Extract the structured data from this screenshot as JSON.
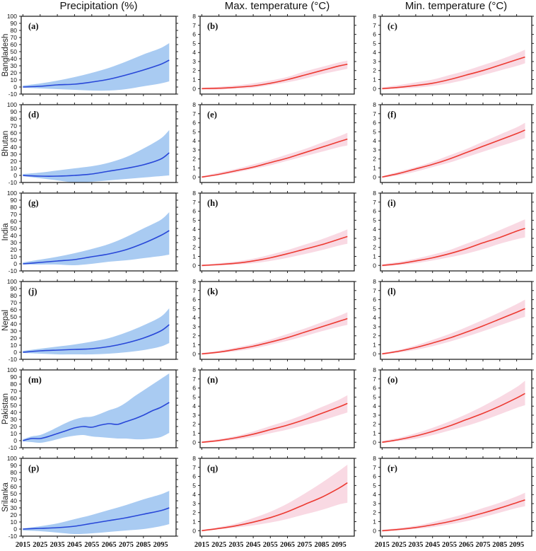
{
  "figure": {
    "column_titles": [
      "Precipitation (%)",
      "Max. temperature (°C)",
      "Min. temperature (°C)"
    ],
    "row_labels": [
      "Bangladesh",
      "Bhutan",
      "India",
      "Nepal",
      "Pakistan",
      "Srilanka"
    ],
    "x_axis": {
      "xlim": [
        2014,
        2104
      ],
      "ticks": [
        2015,
        2025,
        2035,
        2045,
        2055,
        2065,
        2075,
        2085,
        2095
      ]
    },
    "colors": {
      "precip_line": "#2847d8",
      "precip_band": "#a9cbf2",
      "temp_line": "#ec3a31",
      "temp_band": "#f9d9e3",
      "frame": "#222222",
      "text": "#111111"
    }
  },
  "chart_data": [
    {
      "id": "a",
      "label": "(a)",
      "type": "line",
      "variant": "precip",
      "row": "Bangladesh",
      "column": "Precipitation (%)",
      "ylim": [
        -10,
        100
      ],
      "yticks": [
        -10,
        0,
        10,
        20,
        30,
        40,
        50,
        60,
        70,
        80,
        90,
        100
      ],
      "x": [
        2015,
        2025,
        2035,
        2045,
        2055,
        2065,
        2075,
        2085,
        2095,
        2100
      ],
      "line": [
        0,
        1,
        3,
        4,
        7,
        11,
        17,
        24,
        32,
        38
      ],
      "lower": [
        -1,
        -2,
        -3,
        -4,
        -5,
        -5,
        -3,
        1,
        5,
        8
      ],
      "upper": [
        2,
        5,
        9,
        14,
        20,
        27,
        36,
        46,
        55,
        62
      ]
    },
    {
      "id": "b",
      "label": "(b)",
      "type": "line",
      "variant": "temp",
      "row": "Bangladesh",
      "column": "Max. temperature (°C)",
      "ylim": [
        -0.6,
        8
      ],
      "yticks": [
        0,
        1,
        2,
        3,
        4,
        5,
        6,
        7,
        8
      ],
      "x": [
        2015,
        2025,
        2035,
        2045,
        2055,
        2065,
        2075,
        2085,
        2095,
        2100
      ],
      "line": [
        0,
        0.05,
        0.15,
        0.3,
        0.6,
        1.0,
        1.5,
        2.0,
        2.5,
        2.7
      ],
      "lower": [
        -0.1,
        -0.1,
        0,
        0.1,
        0.4,
        0.7,
        1.1,
        1.6,
        2.0,
        2.2
      ],
      "upper": [
        0.1,
        0.2,
        0.35,
        0.6,
        0.9,
        1.3,
        1.9,
        2.4,
        2.9,
        3.1
      ]
    },
    {
      "id": "c",
      "label": "(c)",
      "type": "line",
      "variant": "temp",
      "row": "Bangladesh",
      "column": "Min. temperature (°C)",
      "ylim": [
        -0.6,
        8
      ],
      "yticks": [
        0,
        1,
        2,
        3,
        4,
        5,
        6,
        7,
        8
      ],
      "x": [
        2015,
        2025,
        2035,
        2045,
        2055,
        2065,
        2075,
        2085,
        2095,
        2100
      ],
      "line": [
        0,
        0.15,
        0.35,
        0.6,
        1.0,
        1.5,
        2.0,
        2.6,
        3.2,
        3.5
      ],
      "lower": [
        -0.1,
        0,
        0.1,
        0.3,
        0.6,
        1.0,
        1.5,
        2.0,
        2.5,
        2.8
      ],
      "upper": [
        0.15,
        0.4,
        0.7,
        1.0,
        1.5,
        2.0,
        2.6,
        3.2,
        3.9,
        4.3
      ]
    },
    {
      "id": "d",
      "label": "(d)",
      "type": "line",
      "variant": "precip",
      "row": "Bhutan",
      "column": "Precipitation (%)",
      "ylim": [
        -10,
        100
      ],
      "yticks": [
        -10,
        0,
        10,
        20,
        30,
        40,
        50,
        60,
        70,
        80,
        90,
        100
      ],
      "x": [
        2015,
        2025,
        2035,
        2045,
        2055,
        2065,
        2075,
        2085,
        2095,
        2100
      ],
      "line": [
        0,
        -1,
        -1,
        0,
        2,
        6,
        10,
        15,
        23,
        32
      ],
      "lower": [
        -1,
        -4,
        -7,
        -10,
        -9,
        -7,
        -5,
        -3,
        -1,
        0
      ],
      "upper": [
        2,
        4,
        7,
        10,
        13,
        18,
        26,
        38,
        52,
        64
      ]
    },
    {
      "id": "e",
      "label": "(e)",
      "type": "line",
      "variant": "temp",
      "row": "Bhutan",
      "column": "Max. temperature (°C)",
      "ylim": [
        -0.6,
        8
      ],
      "yticks": [
        0,
        1,
        2,
        3,
        4,
        5,
        6,
        7,
        8
      ],
      "x": [
        2015,
        2025,
        2035,
        2045,
        2055,
        2065,
        2075,
        2085,
        2095,
        2100
      ],
      "line": [
        0,
        0.3,
        0.7,
        1.1,
        1.6,
        2.1,
        2.7,
        3.3,
        3.9,
        4.2
      ],
      "lower": [
        -0.1,
        0.2,
        0.5,
        0.9,
        1.3,
        1.8,
        2.3,
        2.8,
        3.3,
        3.5
      ],
      "upper": [
        0.1,
        0.5,
        0.9,
        1.4,
        1.9,
        2.5,
        3.1,
        3.8,
        4.5,
        4.9
      ]
    },
    {
      "id": "f",
      "label": "(f)",
      "type": "line",
      "variant": "temp",
      "row": "Bhutan",
      "column": "Min. temperature (°C)",
      "ylim": [
        -0.6,
        8
      ],
      "yticks": [
        0,
        1,
        2,
        3,
        4,
        5,
        6,
        7,
        8
      ],
      "x": [
        2015,
        2025,
        2035,
        2045,
        2055,
        2065,
        2075,
        2085,
        2095,
        2100
      ],
      "line": [
        0,
        0.4,
        0.9,
        1.4,
        2.0,
        2.7,
        3.4,
        4.1,
        4.8,
        5.2
      ],
      "lower": [
        -0.1,
        0.2,
        0.6,
        1.1,
        1.6,
        2.2,
        2.8,
        3.4,
        4.0,
        4.3
      ],
      "upper": [
        0.1,
        0.6,
        1.1,
        1.7,
        2.4,
        3.1,
        3.9,
        4.7,
        5.5,
        6.0
      ]
    },
    {
      "id": "g",
      "label": "(g)",
      "type": "line",
      "variant": "precip",
      "row": "India",
      "column": "Precipitation (%)",
      "ylim": [
        -10,
        100
      ],
      "yticks": [
        -10,
        0,
        10,
        20,
        30,
        40,
        50,
        60,
        70,
        80,
        90,
        100
      ],
      "x": [
        2015,
        2025,
        2035,
        2045,
        2055,
        2065,
        2075,
        2085,
        2095,
        2100
      ],
      "line": [
        0,
        2,
        4,
        6,
        10,
        14,
        20,
        29,
        40,
        47
      ],
      "lower": [
        -1,
        -1,
        -1,
        -2,
        0,
        3,
        5,
        8,
        11,
        13
      ],
      "upper": [
        2,
        6,
        10,
        15,
        21,
        28,
        38,
        50,
        62,
        73
      ]
    },
    {
      "id": "h",
      "label": "(h)",
      "type": "line",
      "variant": "temp",
      "row": "India",
      "column": "Max. temperature (°C)",
      "ylim": [
        -0.6,
        8
      ],
      "yticks": [
        0,
        1,
        2,
        3,
        4,
        5,
        6,
        7,
        8
      ],
      "x": [
        2015,
        2025,
        2035,
        2045,
        2055,
        2065,
        2075,
        2085,
        2095,
        2100
      ],
      "line": [
        0,
        0.1,
        0.25,
        0.5,
        0.85,
        1.3,
        1.8,
        2.3,
        2.9,
        3.2
      ],
      "lower": [
        -0.1,
        0,
        0.1,
        0.25,
        0.5,
        0.85,
        1.25,
        1.7,
        2.2,
        2.4
      ],
      "upper": [
        0.1,
        0.25,
        0.45,
        0.75,
        1.2,
        1.7,
        2.3,
        2.9,
        3.6,
        4.0
      ]
    },
    {
      "id": "i",
      "label": "(i)",
      "type": "line",
      "variant": "temp",
      "row": "India",
      "column": "Min. temperature (°C)",
      "ylim": [
        -0.6,
        8
      ],
      "yticks": [
        0,
        1,
        2,
        3,
        4,
        5,
        6,
        7,
        8
      ],
      "x": [
        2015,
        2025,
        2035,
        2045,
        2055,
        2065,
        2075,
        2085,
        2095,
        2100
      ],
      "line": [
        0,
        0.2,
        0.5,
        0.85,
        1.3,
        1.85,
        2.5,
        3.1,
        3.8,
        4.1
      ],
      "lower": [
        -0.1,
        0.05,
        0.25,
        0.55,
        0.9,
        1.3,
        1.8,
        2.4,
        2.9,
        3.1
      ],
      "upper": [
        0.15,
        0.4,
        0.75,
        1.2,
        1.7,
        2.4,
        3.1,
        3.9,
        4.7,
        5.1
      ]
    },
    {
      "id": "j",
      "label": "(j)",
      "type": "line",
      "variant": "precip",
      "row": "Nepal",
      "column": "Precipitation (%)",
      "ylim": [
        -10,
        100
      ],
      "yticks": [
        -10,
        0,
        10,
        20,
        30,
        40,
        50,
        60,
        70,
        80,
        90,
        100
      ],
      "x": [
        2015,
        2025,
        2035,
        2045,
        2055,
        2065,
        2075,
        2085,
        2095,
        2100
      ],
      "line": [
        0,
        2,
        3,
        4,
        5,
        8,
        13,
        20,
        30,
        39
      ],
      "lower": [
        -1,
        -2,
        -3,
        -3,
        -3,
        -2,
        0,
        3,
        8,
        13
      ],
      "upper": [
        2,
        5,
        8,
        11,
        15,
        20,
        28,
        38,
        50,
        62
      ]
    },
    {
      "id": "k",
      "label": "(k)",
      "type": "line",
      "variant": "temp",
      "row": "Nepal",
      "column": "Max. temperature (°C)",
      "ylim": [
        -0.6,
        8
      ],
      "yticks": [
        0,
        1,
        2,
        3,
        4,
        5,
        6,
        7,
        8
      ],
      "x": [
        2015,
        2025,
        2035,
        2045,
        2055,
        2065,
        2075,
        2085,
        2095,
        2100
      ],
      "line": [
        0,
        0.2,
        0.5,
        0.85,
        1.3,
        1.8,
        2.4,
        3.0,
        3.6,
        3.9
      ],
      "lower": [
        -0.1,
        0.1,
        0.3,
        0.6,
        1.0,
        1.45,
        1.95,
        2.5,
        3.0,
        3.2
      ],
      "upper": [
        0.1,
        0.35,
        0.7,
        1.1,
        1.6,
        2.2,
        2.8,
        3.5,
        4.2,
        4.6
      ]
    },
    {
      "id": "l",
      "label": "(l)",
      "type": "line",
      "variant": "temp",
      "row": "Nepal",
      "column": "Min. temperature (°C)",
      "ylim": [
        -0.6,
        8
      ],
      "yticks": [
        0,
        1,
        2,
        3,
        4,
        5,
        6,
        7,
        8
      ],
      "x": [
        2015,
        2025,
        2035,
        2045,
        2055,
        2065,
        2075,
        2085,
        2095,
        2100
      ],
      "line": [
        0,
        0.3,
        0.7,
        1.2,
        1.75,
        2.4,
        3.1,
        3.85,
        4.6,
        5.0
      ],
      "lower": [
        -0.1,
        0.15,
        0.45,
        0.85,
        1.35,
        1.9,
        2.5,
        3.15,
        3.8,
        4.1
      ],
      "upper": [
        0.1,
        0.45,
        0.95,
        1.55,
        2.2,
        2.95,
        3.75,
        4.6,
        5.5,
        6.0
      ]
    },
    {
      "id": "m",
      "label": "(m)",
      "type": "line",
      "variant": "precip",
      "row": "Pakistan",
      "column": "Precipitation (%)",
      "ylim": [
        -10,
        100
      ],
      "yticks": [
        -10,
        0,
        10,
        20,
        30,
        40,
        50,
        60,
        70,
        80,
        90,
        100
      ],
      "x": [
        2015,
        2020,
        2025,
        2030,
        2035,
        2040,
        2045,
        2050,
        2055,
        2060,
        2065,
        2070,
        2075,
        2080,
        2085,
        2090,
        2095,
        2100
      ],
      "line": [
        0,
        3,
        3,
        6,
        10,
        14,
        18,
        20,
        19,
        22,
        24,
        23,
        27,
        31,
        36,
        42,
        47,
        54
      ],
      "lower": [
        -1,
        -2,
        -3,
        -1,
        2,
        5,
        7,
        8,
        6,
        5,
        4,
        3,
        3,
        2,
        2,
        3,
        5,
        11
      ],
      "upper": [
        2,
        6,
        8,
        13,
        19,
        25,
        30,
        33,
        34,
        38,
        43,
        47,
        54,
        63,
        71,
        79,
        87,
        95
      ]
    },
    {
      "id": "n",
      "label": "(n)",
      "type": "line",
      "variant": "temp",
      "row": "Pakistan",
      "column": "Max. temperature (°C)",
      "ylim": [
        -0.6,
        8
      ],
      "yticks": [
        0,
        1,
        2,
        3,
        4,
        5,
        6,
        7,
        8
      ],
      "x": [
        2015,
        2025,
        2035,
        2045,
        2055,
        2065,
        2075,
        2085,
        2095,
        2100
      ],
      "line": [
        0,
        0.2,
        0.5,
        0.9,
        1.4,
        1.9,
        2.5,
        3.2,
        3.9,
        4.3
      ],
      "lower": [
        -0.1,
        0.1,
        0.3,
        0.6,
        1.0,
        1.4,
        1.9,
        2.4,
        3.0,
        3.3
      ],
      "upper": [
        0.1,
        0.35,
        0.7,
        1.2,
        1.8,
        2.4,
        3.1,
        3.9,
        4.7,
        5.2
      ]
    },
    {
      "id": "o",
      "label": "(o)",
      "type": "line",
      "variant": "temp",
      "row": "Pakistan",
      "column": "Min. temperature (°C)",
      "ylim": [
        -0.6,
        8
      ],
      "yticks": [
        0,
        1,
        2,
        3,
        4,
        5,
        6,
        7,
        8
      ],
      "x": [
        2015,
        2025,
        2035,
        2045,
        2055,
        2065,
        2075,
        2085,
        2095,
        2100
      ],
      "line": [
        0,
        0.3,
        0.7,
        1.2,
        1.8,
        2.5,
        3.2,
        4.0,
        4.9,
        5.4
      ],
      "lower": [
        -0.1,
        0.15,
        0.4,
        0.8,
        1.3,
        1.8,
        2.4,
        3.1,
        3.8,
        4.1
      ],
      "upper": [
        0.15,
        0.5,
        1.0,
        1.6,
        2.3,
        3.1,
        4.0,
        5.0,
        6.1,
        6.8
      ]
    },
    {
      "id": "p",
      "label": "(p)",
      "type": "line",
      "variant": "precip",
      "row": "Srilanka",
      "column": "Precipitation (%)",
      "ylim": [
        -10,
        100
      ],
      "yticks": [
        -10,
        0,
        10,
        20,
        30,
        40,
        50,
        60,
        70,
        80,
        90,
        100
      ],
      "x": [
        2015,
        2025,
        2035,
        2045,
        2055,
        2065,
        2075,
        2085,
        2095,
        2100
      ],
      "line": [
        0,
        1,
        2,
        4,
        8,
        12,
        16,
        21,
        26,
        30
      ],
      "lower": [
        -2,
        -3,
        -5,
        -7,
        -6,
        -4,
        -2,
        0,
        4,
        7
      ],
      "upper": [
        1,
        4,
        8,
        14,
        20,
        27,
        34,
        42,
        49,
        54
      ]
    },
    {
      "id": "q",
      "label": "(q)",
      "type": "line",
      "variant": "temp",
      "row": "Srilanka",
      "column": "Max. temperature (°C)",
      "ylim": [
        -0.6,
        8
      ],
      "yticks": [
        0,
        1,
        2,
        3,
        4,
        5,
        6,
        7,
        8
      ],
      "x": [
        2015,
        2025,
        2035,
        2045,
        2055,
        2065,
        2075,
        2085,
        2095,
        2100
      ],
      "line": [
        0,
        0.25,
        0.55,
        0.95,
        1.45,
        2.1,
        2.9,
        3.7,
        4.7,
        5.3
      ],
      "lower": [
        -0.05,
        0.15,
        0.35,
        0.6,
        0.9,
        1.3,
        1.8,
        2.3,
        2.9,
        3.1
      ],
      "upper": [
        0.1,
        0.4,
        0.8,
        1.4,
        2.1,
        3.0,
        4.1,
        5.3,
        6.6,
        7.3
      ]
    },
    {
      "id": "r",
      "label": "(r)",
      "type": "line",
      "variant": "temp",
      "row": "Srilanka",
      "column": "Min. temperature (°C)",
      "ylim": [
        -0.6,
        8
      ],
      "yticks": [
        0,
        1,
        2,
        3,
        4,
        5,
        6,
        7,
        8
      ],
      "x": [
        2015,
        2025,
        2035,
        2045,
        2055,
        2065,
        2075,
        2085,
        2095,
        2100
      ],
      "line": [
        0,
        0.15,
        0.35,
        0.65,
        1.0,
        1.45,
        1.95,
        2.5,
        3.1,
        3.4
      ],
      "lower": [
        -0.1,
        0.05,
        0.2,
        0.4,
        0.7,
        1.05,
        1.5,
        2.0,
        2.5,
        2.7
      ],
      "upper": [
        0.1,
        0.3,
        0.55,
        0.95,
        1.4,
        1.9,
        2.5,
        3.1,
        3.8,
        4.2
      ]
    }
  ]
}
